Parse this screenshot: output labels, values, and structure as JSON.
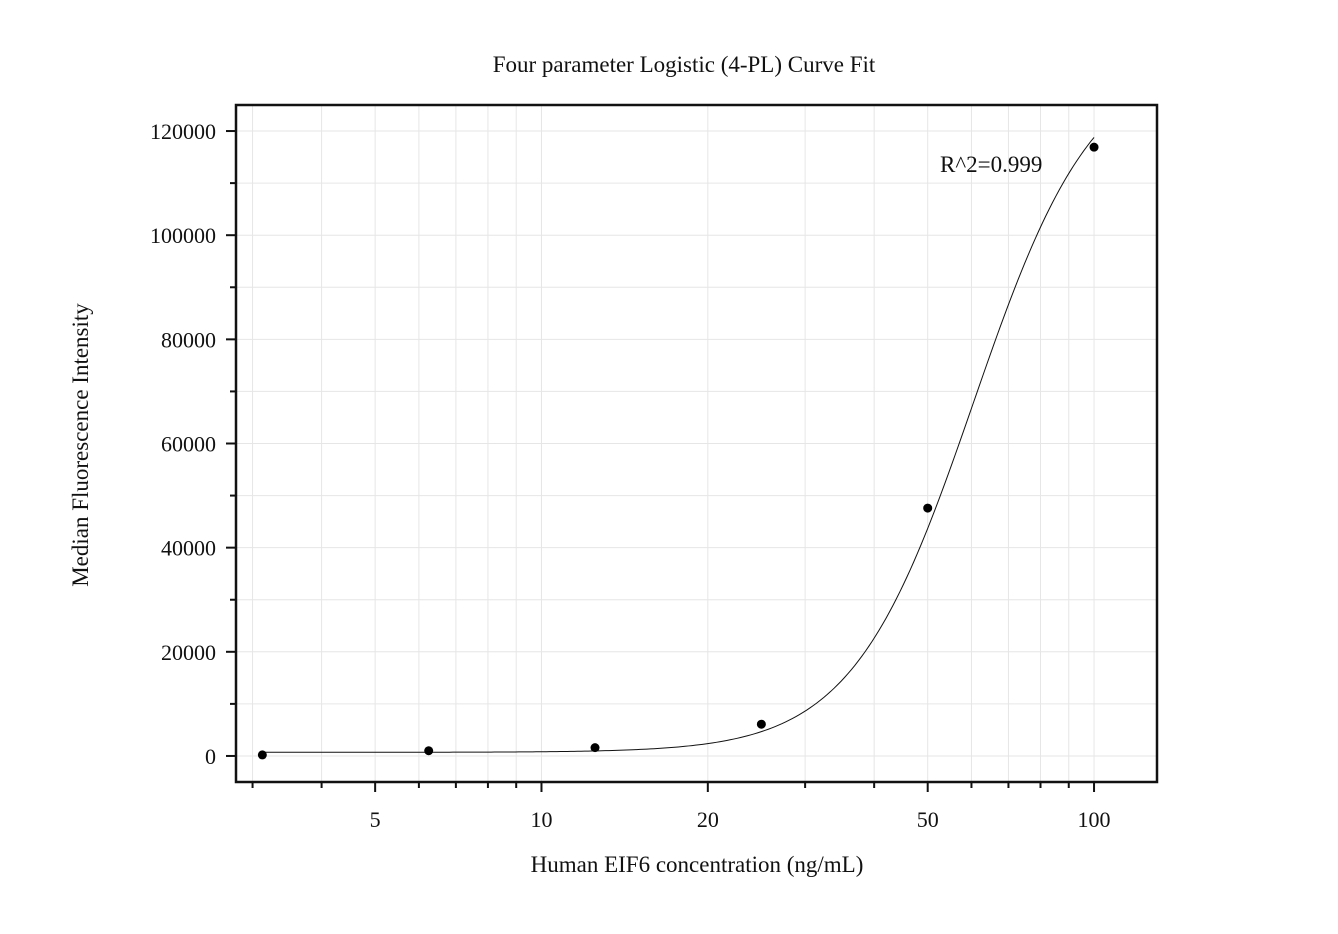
{
  "chart_data": {
    "type": "scatter",
    "title": "Four parameter Logistic (4-PL) Curve Fit",
    "xlabel": "Human EIF6 concentration (ng/mL)",
    "ylabel": "Median Fluorescence Intensity",
    "x_scale": "log",
    "xlim": [
      2.8,
      130
    ],
    "ylim": [
      -5000,
      125000
    ],
    "x_ticks": [
      5,
      10,
      20,
      50,
      100
    ],
    "x_tick_labels": [
      "5",
      "10",
      "20",
      "50",
      "100"
    ],
    "y_ticks": [
      0,
      20000,
      40000,
      60000,
      80000,
      100000,
      120000
    ],
    "y_tick_labels": [
      "0",
      "20000",
      "40000",
      "60000",
      "80000",
      "100000",
      "120000"
    ],
    "grid": true,
    "legend": "none",
    "annotation": "R^2=0.999",
    "series": [
      {
        "x": [
          3.125,
          6.25,
          12.5,
          25,
          50,
          100
        ],
        "y": [
          200,
          1000,
          1600,
          6100,
          47600,
          116900
        ],
        "marker": "circle",
        "color": "#000000"
      }
    ],
    "fit": {
      "model": "4PL",
      "bottom": 700,
      "top": 135000,
      "ec50": 60.5,
      "hill": 3.95,
      "color": "#111111"
    }
  }
}
